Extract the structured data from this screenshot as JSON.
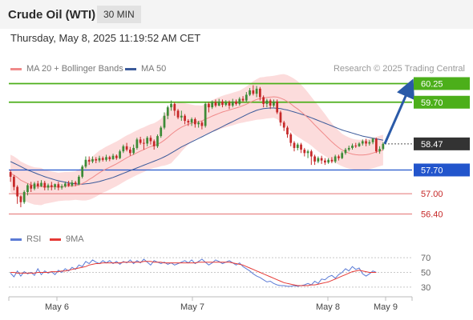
{
  "header": {
    "title": "Crude Oil (WTI)",
    "interval": "30 MIN",
    "datetime": "Thursday, May 8, 2025 11:19:52 AM CET"
  },
  "legend": {
    "ma20_label": "MA 20 + Bollinger Bands",
    "ma50_label": "MA 50",
    "credit": "Research © 2025 Trading Central"
  },
  "rsi_legend": {
    "rsi_label": "RSI",
    "ma9_label": "9MA"
  },
  "colors": {
    "up": "#3d8b37",
    "down": "#c62828",
    "ma20": "#f08a8a",
    "ma50": "#3b5a9a",
    "band": "#fbd3d3",
    "resistance": "#4caf1a",
    "support": "#2255cc",
    "weak_support": "#e57373",
    "current": "#333333",
    "arrow": "#2a5aa8",
    "rsi": "#5b7bd5",
    "rsi_ma": "#e53935"
  },
  "chart_data": [
    {
      "type": "candlestick",
      "x_labels": [
        "May 6",
        "May 7",
        "May 8",
        "May 9"
      ],
      "ylim": [
        56.2,
        60.45
      ],
      "levels": [
        {
          "value": 60.25,
          "label": "60.25",
          "kind": "resistance"
        },
        {
          "value": 59.7,
          "label": "59.70",
          "kind": "resistance"
        },
        {
          "value": 58.47,
          "label": "58.47",
          "kind": "current"
        },
        {
          "value": 57.7,
          "label": "57.70",
          "kind": "support"
        },
        {
          "value": 57.0,
          "label": "57.00",
          "kind": "weak_support"
        },
        {
          "value": 56.4,
          "label": "56.40",
          "kind": "weak_support"
        }
      ],
      "candles": [
        [
          57.64,
          57.5,
          57.7,
          57.35
        ],
        [
          57.5,
          57.2,
          57.55,
          57.1
        ],
        [
          57.2,
          56.92,
          57.25,
          56.7
        ],
        [
          56.92,
          56.75,
          56.95,
          56.6
        ],
        [
          56.75,
          57.05,
          57.1,
          56.7
        ],
        [
          57.05,
          57.25,
          57.3,
          56.95
        ],
        [
          57.25,
          57.15,
          57.35,
          57.05
        ],
        [
          57.15,
          57.3,
          57.35,
          57.1
        ],
        [
          57.3,
          57.22,
          57.38,
          57.15
        ],
        [
          57.22,
          57.32,
          57.4,
          57.2
        ],
        [
          57.32,
          57.18,
          57.38,
          57.1
        ],
        [
          57.18,
          57.25,
          57.3,
          57.1
        ],
        [
          57.25,
          57.2,
          57.35,
          57.1
        ],
        [
          57.2,
          57.28,
          57.3,
          57.12
        ],
        [
          57.28,
          57.18,
          57.35,
          57.1
        ],
        [
          57.18,
          57.22,
          57.28,
          57.12
        ],
        [
          57.22,
          57.3,
          57.36,
          57.18
        ],
        [
          57.3,
          57.24,
          57.38,
          57.2
        ],
        [
          57.24,
          57.33,
          57.4,
          57.2
        ],
        [
          57.33,
          57.28,
          57.38,
          57.22
        ],
        [
          57.28,
          57.5,
          57.55,
          57.25
        ],
        [
          57.5,
          57.8,
          57.85,
          57.45
        ],
        [
          57.8,
          58.0,
          58.1,
          57.75
        ],
        [
          58.0,
          57.95,
          58.1,
          57.85
        ],
        [
          57.95,
          58.02,
          58.1,
          57.9
        ],
        [
          58.02,
          57.98,
          58.08,
          57.9
        ],
        [
          57.98,
          58.05,
          58.12,
          57.92
        ],
        [
          58.05,
          58.0,
          58.1,
          57.95
        ],
        [
          58.0,
          58.08,
          58.15,
          57.95
        ],
        [
          58.08,
          58.02,
          58.12,
          57.96
        ],
        [
          58.02,
          58.12,
          58.18,
          58.0
        ],
        [
          58.12,
          58.05,
          58.16,
          58.0
        ],
        [
          58.05,
          58.25,
          58.3,
          58.02
        ],
        [
          58.25,
          58.4,
          58.45,
          58.2
        ],
        [
          58.4,
          58.3,
          58.5,
          58.25
        ],
        [
          58.3,
          58.2,
          58.38,
          58.12
        ],
        [
          58.2,
          58.35,
          58.45,
          58.15
        ],
        [
          58.35,
          58.6,
          58.65,
          58.3
        ],
        [
          58.6,
          58.5,
          58.68,
          58.45
        ],
        [
          58.5,
          58.48,
          58.62,
          58.3
        ],
        [
          58.48,
          58.65,
          58.7,
          58.4
        ],
        [
          58.65,
          58.55,
          58.72,
          58.45
        ],
        [
          58.55,
          58.4,
          58.6,
          58.3
        ],
        [
          58.4,
          58.7,
          58.75,
          58.35
        ],
        [
          58.7,
          58.95,
          59.0,
          58.65
        ],
        [
          58.95,
          59.3,
          59.4,
          58.9
        ],
        [
          59.3,
          59.55,
          59.6,
          59.2
        ],
        [
          59.55,
          59.65,
          59.75,
          59.45
        ],
        [
          59.65,
          59.45,
          59.7,
          59.3
        ],
        [
          59.45,
          59.25,
          59.5,
          59.2
        ],
        [
          59.25,
          59.3,
          59.45,
          59.15
        ],
        [
          59.3,
          59.15,
          59.35,
          59.05
        ],
        [
          59.15,
          59.1,
          59.2,
          59.0
        ],
        [
          59.1,
          59.2,
          59.25,
          59.0
        ],
        [
          59.2,
          59.05,
          59.25,
          58.95
        ],
        [
          59.05,
          59.1,
          59.15,
          58.95
        ],
        [
          59.1,
          59.0,
          59.15,
          58.9
        ],
        [
          59.0,
          59.65,
          59.7,
          58.95
        ],
        [
          59.65,
          59.55,
          59.7,
          59.4
        ],
        [
          59.55,
          59.7,
          59.75,
          59.5
        ],
        [
          59.7,
          59.6,
          59.78,
          59.55
        ],
        [
          59.6,
          59.72,
          59.8,
          59.58
        ],
        [
          59.72,
          59.62,
          59.78,
          59.55
        ],
        [
          59.62,
          59.7,
          59.76,
          59.58
        ],
        [
          59.7,
          59.6,
          59.75,
          59.5
        ],
        [
          59.6,
          59.72,
          59.8,
          59.55
        ],
        [
          59.72,
          59.65,
          59.78,
          59.6
        ],
        [
          59.65,
          59.8,
          59.85,
          59.6
        ],
        [
          59.8,
          59.75,
          59.88,
          59.7
        ],
        [
          59.75,
          59.92,
          60.0,
          59.7
        ],
        [
          59.92,
          60.05,
          60.12,
          59.88
        ],
        [
          60.05,
          59.95,
          60.2,
          59.9
        ],
        [
          59.95,
          60.1,
          60.18,
          59.85
        ],
        [
          60.1,
          59.85,
          60.15,
          59.75
        ],
        [
          59.85,
          59.65,
          59.9,
          59.55
        ],
        [
          59.65,
          59.75,
          59.8,
          59.55
        ],
        [
          59.75,
          59.6,
          59.8,
          59.5
        ],
        [
          59.6,
          59.72,
          59.78,
          59.55
        ],
        [
          59.72,
          59.4,
          59.78,
          59.35
        ],
        [
          59.4,
          59.1,
          59.45,
          59.0
        ],
        [
          59.1,
          58.95,
          59.15,
          58.85
        ],
        [
          58.95,
          58.75,
          59.0,
          58.65
        ],
        [
          58.75,
          58.5,
          58.8,
          58.4
        ],
        [
          58.5,
          58.35,
          58.55,
          58.25
        ],
        [
          58.35,
          58.45,
          58.5,
          58.28
        ],
        [
          58.45,
          58.3,
          58.5,
          58.2
        ],
        [
          58.3,
          58.2,
          58.35,
          58.1
        ],
        [
          58.2,
          58.25,
          58.3,
          58.05
        ],
        [
          58.25,
          58.1,
          58.3,
          57.85
        ],
        [
          58.1,
          57.95,
          58.15,
          57.85
        ],
        [
          57.95,
          58.05,
          58.1,
          57.9
        ],
        [
          58.05,
          57.98,
          58.12,
          57.88
        ],
        [
          57.98,
          57.92,
          58.05,
          57.85
        ],
        [
          57.92,
          58.0,
          58.05,
          57.88
        ],
        [
          58.0,
          57.95,
          58.08,
          57.9
        ],
        [
          57.95,
          58.1,
          58.15,
          57.9
        ],
        [
          58.1,
          58.05,
          58.15,
          57.98
        ],
        [
          58.05,
          58.2,
          58.25,
          58.02
        ],
        [
          58.2,
          58.3,
          58.35,
          58.15
        ],
        [
          58.3,
          58.35,
          58.42,
          58.25
        ],
        [
          58.35,
          58.42,
          58.48,
          58.3
        ],
        [
          58.42,
          58.4,
          58.5,
          58.35
        ],
        [
          58.4,
          58.48,
          58.52,
          58.38
        ],
        [
          58.48,
          58.55,
          58.6,
          58.42
        ],
        [
          58.55,
          58.48,
          58.62,
          58.4
        ],
        [
          58.48,
          58.52,
          58.58,
          58.42
        ],
        [
          58.52,
          58.62,
          58.65,
          58.46
        ],
        [
          58.62,
          58.25,
          58.65,
          58.2
        ],
        [
          58.25,
          58.32,
          58.4,
          58.18
        ],
        [
          58.32,
          58.47,
          58.52,
          58.28
        ]
      ],
      "ma20": [
        57.6,
        57.55,
        57.48,
        57.4,
        57.35,
        57.3,
        57.26,
        57.23,
        57.22,
        57.21,
        57.2,
        57.2,
        57.2,
        57.2,
        57.2,
        57.21,
        57.22,
        57.22,
        57.23,
        57.24,
        57.26,
        57.3,
        57.35,
        57.42,
        57.48,
        57.55,
        57.62,
        57.68,
        57.73,
        57.78,
        57.83,
        57.88,
        57.94,
        58.0,
        58.06,
        58.11,
        58.16,
        58.21,
        58.26,
        58.3,
        58.35,
        58.39,
        58.42,
        58.46,
        58.51,
        58.58,
        58.66,
        58.75,
        58.83,
        58.9,
        58.96,
        59.01,
        59.05,
        59.08,
        59.11,
        59.13,
        59.15,
        59.2,
        59.24,
        59.29,
        59.33,
        59.37,
        59.41,
        59.44,
        59.47,
        59.5,
        59.53,
        59.56,
        59.6,
        59.64,
        59.69,
        59.74,
        59.78,
        59.81,
        59.82,
        59.84,
        59.85,
        59.86,
        59.85,
        59.82,
        59.78,
        59.72,
        59.65,
        59.57,
        59.5,
        59.42,
        59.33,
        59.24,
        59.14,
        59.03,
        58.93,
        58.83,
        58.73,
        58.63,
        58.53,
        58.44,
        58.36,
        58.29,
        58.24,
        58.2,
        58.17,
        58.15,
        58.14,
        58.14,
        58.15,
        58.17,
        58.2,
        58.23,
        58.26,
        58.29
      ],
      "ma50": [
        57.95,
        57.9,
        57.85,
        57.8,
        57.75,
        57.7,
        57.66,
        57.62,
        57.58,
        57.54,
        57.5,
        57.47,
        57.44,
        57.41,
        57.38,
        57.36,
        57.34,
        57.32,
        57.3,
        57.29,
        57.28,
        57.28,
        57.29,
        57.3,
        57.32,
        57.34,
        57.36,
        57.39,
        57.42,
        57.45,
        57.48,
        57.52,
        57.56,
        57.6,
        57.64,
        57.68,
        57.72,
        57.76,
        57.8,
        57.84,
        57.88,
        57.92,
        57.96,
        58.0,
        58.04,
        58.09,
        58.14,
        58.2,
        58.26,
        58.32,
        58.38,
        58.43,
        58.48,
        58.53,
        58.58,
        58.63,
        58.68,
        58.73,
        58.78,
        58.83,
        58.88,
        58.93,
        58.98,
        59.03,
        59.08,
        59.13,
        59.18,
        59.23,
        59.28,
        59.33,
        59.38,
        59.42,
        59.46,
        59.49,
        59.51,
        59.52,
        59.53,
        59.53,
        59.52,
        59.51,
        59.49,
        59.47,
        59.44,
        59.41,
        59.38,
        59.35,
        59.32,
        59.28,
        59.24,
        59.2,
        59.16,
        59.12,
        59.08,
        59.04,
        59.0,
        58.96,
        58.92,
        58.88,
        58.85,
        58.82,
        58.79,
        58.76,
        58.73,
        58.7,
        58.68,
        58.66,
        58.64,
        58.62,
        58.6,
        58.58
      ],
      "band_width": [
        0.55,
        0.55,
        0.55,
        0.55,
        0.55,
        0.55,
        0.55,
        0.55,
        0.55,
        0.55,
        0.5,
        0.48,
        0.46,
        0.44,
        0.42,
        0.42,
        0.42,
        0.42,
        0.42,
        0.42,
        0.45,
        0.5,
        0.55,
        0.6,
        0.62,
        0.64,
        0.65,
        0.65,
        0.66,
        0.66,
        0.66,
        0.66,
        0.66,
        0.66,
        0.66,
        0.66,
        0.66,
        0.66,
        0.66,
        0.66,
        0.66,
        0.66,
        0.66,
        0.68,
        0.7,
        0.75,
        0.8,
        0.85,
        0.82,
        0.78,
        0.72,
        0.66,
        0.6,
        0.55,
        0.5,
        0.48,
        0.45,
        0.45,
        0.46,
        0.47,
        0.48,
        0.48,
        0.48,
        0.48,
        0.48,
        0.48,
        0.48,
        0.48,
        0.5,
        0.52,
        0.55,
        0.58,
        0.6,
        0.62,
        0.62,
        0.62,
        0.62,
        0.62,
        0.65,
        0.7,
        0.75,
        0.78,
        0.8,
        0.82,
        0.82,
        0.8,
        0.78,
        0.75,
        0.72,
        0.7,
        0.68,
        0.65,
        0.62,
        0.58,
        0.55,
        0.52,
        0.5,
        0.48,
        0.47,
        0.46,
        0.45,
        0.45,
        0.45,
        0.45,
        0.45,
        0.45,
        0.45,
        0.45,
        0.45,
        0.45
      ],
      "projection": {
        "from": 58.47,
        "to": 60.25
      }
    },
    {
      "type": "line",
      "name": "RSI",
      "ylim": [
        20,
        80
      ],
      "y_ticks": [
        70,
        50,
        30
      ],
      "series": [
        {
          "name": "RSI",
          "values": [
            49,
            44,
            52,
            45,
            51,
            48,
            50,
            46,
            55,
            47,
            52,
            49,
            51,
            47,
            53,
            50,
            55,
            52,
            57,
            54,
            60,
            58,
            65,
            62,
            67,
            64,
            62,
            66,
            63,
            66,
            62,
            65,
            61,
            65,
            63,
            67,
            62,
            66,
            63,
            68,
            64,
            60,
            66,
            64,
            62,
            64,
            61,
            63,
            60,
            62,
            64,
            66,
            63,
            67,
            62,
            65,
            68,
            64,
            60,
            63,
            67,
            65,
            62,
            64,
            66,
            63,
            60,
            63,
            58,
            55,
            52,
            48,
            45,
            43,
            40,
            37,
            38,
            35,
            33,
            32,
            32,
            31,
            31,
            32,
            31,
            32,
            33,
            35,
            33,
            38,
            35,
            41,
            40,
            44,
            46,
            42,
            47,
            50,
            55,
            52,
            58,
            54,
            56,
            48,
            45,
            48,
            52,
            50
          ]
        },
        {
          "name": "9MA",
          "values": [
            50,
            50,
            49,
            49,
            49,
            49,
            49,
            49,
            50,
            50,
            50,
            50,
            51,
            51,
            51,
            52,
            52,
            53,
            54,
            55,
            56,
            57,
            58,
            60,
            61,
            62,
            62,
            63,
            63,
            63,
            63,
            63,
            63,
            64,
            64,
            64,
            64,
            64,
            64,
            65,
            65,
            65,
            64,
            64,
            64,
            63,
            63,
            63,
            63,
            63,
            63,
            63,
            63,
            63,
            63,
            64,
            64,
            64,
            64,
            64,
            64,
            64,
            64,
            64,
            64,
            63,
            62,
            61,
            60,
            58,
            56,
            54,
            52,
            50,
            48,
            46,
            44,
            42,
            40,
            38,
            36,
            35,
            34,
            33,
            32,
            32,
            32,
            32,
            33,
            33,
            34,
            35,
            36,
            37,
            39,
            41,
            43,
            45,
            47,
            49,
            51,
            52,
            53,
            52,
            51,
            50,
            50,
            50
          ]
        }
      ]
    }
  ]
}
